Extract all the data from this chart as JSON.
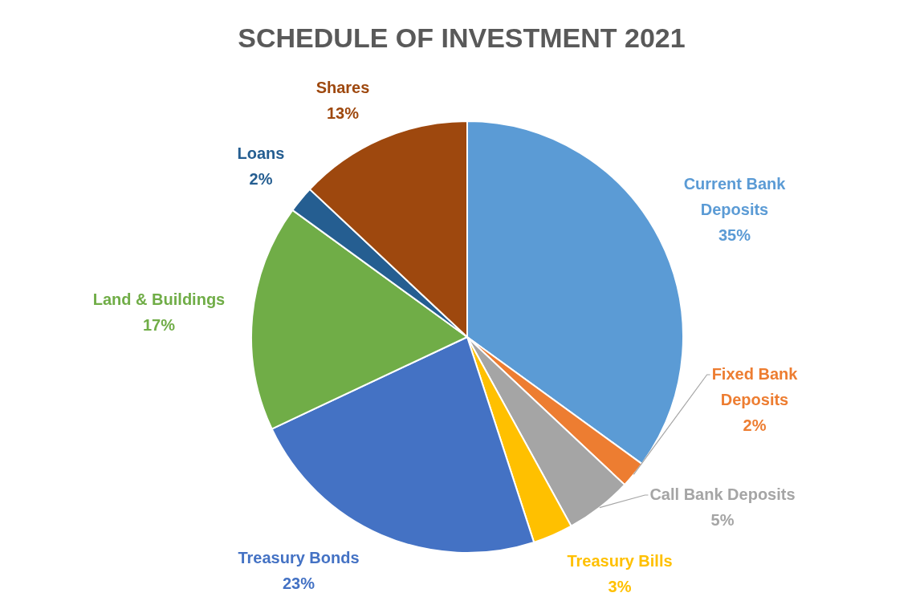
{
  "chart_data": {
    "type": "pie",
    "title": "SCHEDULE OF INVESTMENT 2021",
    "categories": [
      "Current Bank Deposits",
      "Fixed Bank Deposits",
      "Call Bank Deposits",
      "Treasury Bills",
      "Treasury Bonds",
      "Land & Buildings",
      "Loans",
      "Shares"
    ],
    "values": [
      35,
      2,
      5,
      3,
      23,
      17,
      2,
      13
    ],
    "colors": [
      "#5b9bd5",
      "#ed7d31",
      "#a5a5a5",
      "#ffc000",
      "#4472c4",
      "#70ad47",
      "#255e91",
      "#9e480e"
    ],
    "value_labels": [
      "35%",
      "2%",
      "5%",
      "3%",
      "23%",
      "17%",
      "2%",
      "13%"
    ]
  }
}
